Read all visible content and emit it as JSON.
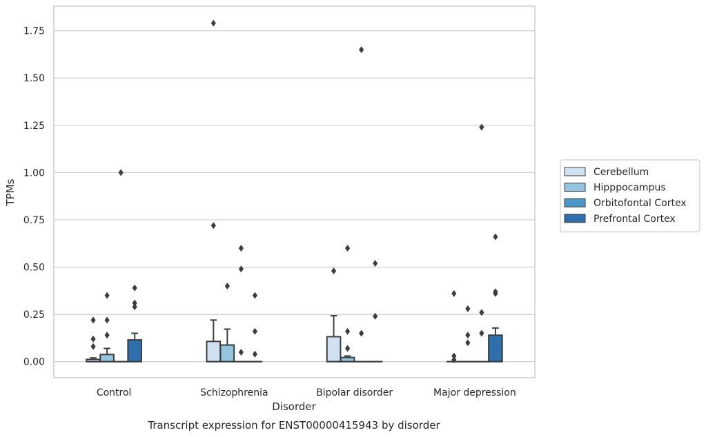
{
  "chart_data": {
    "type": "box",
    "caption": "Transcript expression for ENST00000415943 by disorder",
    "xlabel": "Disorder",
    "ylabel": "TPMs",
    "ylim": [
      -0.085,
      1.88
    ],
    "yticks": [
      0.0,
      0.25,
      0.5,
      0.75,
      1.0,
      1.25,
      1.5,
      1.75
    ],
    "ytick_labels": [
      "0.00",
      "0.25",
      "0.50",
      "0.75",
      "1.00",
      "1.25",
      "1.50",
      "1.75"
    ],
    "grid": "horizontal",
    "legend_position": "outside-right",
    "categories": [
      "Control",
      "Schizophrenia",
      "Bipolar disorder",
      "Major depression"
    ],
    "series": [
      {
        "name": "Cerebellum",
        "color": "#d0e1f2",
        "boxes": [
          {
            "q1": 0.0,
            "median": 0.0,
            "q3": 0.012,
            "whisker_low": 0.0,
            "whisker_high": 0.02,
            "outliers": [
              0.22,
              0.12,
              0.08
            ]
          },
          {
            "q1": 0.0,
            "median": 0.0,
            "q3": 0.107,
            "whisker_low": 0.0,
            "whisker_high": 0.22,
            "outliers": [
              1.79,
              0.72
            ]
          },
          {
            "q1": 0.0,
            "median": 0.0,
            "q3": 0.132,
            "whisker_low": 0.0,
            "whisker_high": 0.243,
            "outliers": [
              0.48
            ]
          },
          {
            "q1": 0.0,
            "median": 0.0,
            "q3": 0.0,
            "whisker_low": 0.0,
            "whisker_high": 0.0,
            "outliers": [
              0.36,
              0.03,
              0.01
            ]
          }
        ]
      },
      {
        "name": "Hipppocampus",
        "color": "#94c4df",
        "boxes": [
          {
            "q1": 0.0,
            "median": 0.0,
            "q3": 0.038,
            "whisker_low": 0.0,
            "whisker_high": 0.07,
            "outliers": [
              0.35,
              0.22,
              0.14
            ]
          },
          {
            "q1": 0.0,
            "median": 0.0,
            "q3": 0.088,
            "whisker_low": 0.0,
            "whisker_high": 0.172,
            "outliers": [
              0.4
            ]
          },
          {
            "q1": 0.0,
            "median": 0.0,
            "q3": 0.022,
            "whisker_low": 0.0,
            "whisker_high": 0.03,
            "outliers": [
              0.6,
              0.16,
              0.07
            ]
          },
          {
            "q1": 0.0,
            "median": 0.0,
            "q3": 0.0,
            "whisker_low": 0.0,
            "whisker_high": 0.0,
            "outliers": [
              0.28,
              0.14,
              0.1
            ]
          }
        ]
      },
      {
        "name": "Orbitofontal Cortex",
        "color": "#4a98c9",
        "boxes": [
          {
            "q1": 0.0,
            "median": 0.0,
            "q3": 0.0,
            "whisker_low": 0.0,
            "whisker_high": 0.0,
            "outliers": [
              1.0
            ]
          },
          {
            "q1": 0.0,
            "median": 0.0,
            "q3": 0.0,
            "whisker_low": 0.0,
            "whisker_high": 0.0,
            "outliers": [
              0.6,
              0.49,
              0.05
            ]
          },
          {
            "q1": 0.0,
            "median": 0.0,
            "q3": 0.0,
            "whisker_low": 0.0,
            "whisker_high": 0.0,
            "outliers": [
              1.65,
              0.15
            ]
          },
          {
            "q1": 0.0,
            "median": 0.0,
            "q3": 0.0,
            "whisker_low": 0.0,
            "whisker_high": 0.0,
            "outliers": [
              1.24,
              0.26,
              0.15
            ]
          }
        ]
      },
      {
        "name": "Prefrontal Cortex",
        "color": "#2f6fab",
        "boxes": [
          {
            "q1": 0.0,
            "median": 0.0,
            "q3": 0.115,
            "whisker_low": 0.0,
            "whisker_high": 0.15,
            "outliers": [
              0.39,
              0.31,
              0.29
            ]
          },
          {
            "q1": 0.0,
            "median": 0.0,
            "q3": 0.0,
            "whisker_low": 0.0,
            "whisker_high": 0.0,
            "outliers": [
              0.35,
              0.16,
              0.04
            ]
          },
          {
            "q1": 0.0,
            "median": 0.0,
            "q3": 0.0,
            "whisker_low": 0.0,
            "whisker_high": 0.0,
            "outliers": [
              0.52,
              0.24
            ]
          },
          {
            "q1": 0.0,
            "median": 0.0,
            "q3": 0.14,
            "whisker_low": 0.0,
            "whisker_high": 0.178,
            "outliers": [
              0.66,
              0.37,
              0.36
            ]
          }
        ]
      }
    ]
  }
}
